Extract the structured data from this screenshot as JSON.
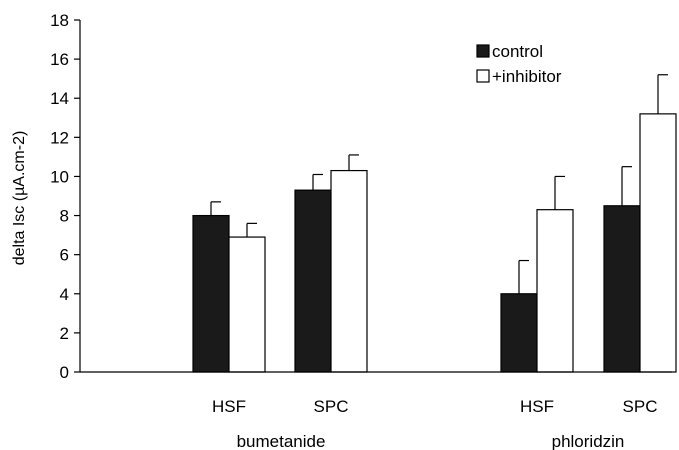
{
  "chart_data": {
    "type": "bar",
    "ylabel": "delta Isc (µA.cm-2)",
    "xlabel": "",
    "ylim": [
      0,
      18
    ],
    "yticks": [
      0,
      2,
      4,
      6,
      8,
      10,
      12,
      14,
      16,
      18
    ],
    "ytick_labels": [
      "0",
      "2",
      "4",
      "6",
      "8",
      "10",
      "12",
      "14",
      "16",
      "18"
    ],
    "grid": false,
    "legend_position": "top-right",
    "groups": [
      {
        "label": "bumetanide",
        "categories": [
          "HSF",
          "SPC"
        ]
      },
      {
        "label": "phloridzin",
        "categories": [
          "HSF",
          "SPC"
        ]
      }
    ],
    "categories": [
      "HSF",
      "SPC",
      "HSF",
      "SPC"
    ],
    "series": [
      {
        "name": "control",
        "color": "#1a1a1a",
        "values": [
          8.0,
          9.3,
          4.0,
          8.5
        ],
        "error": [
          0.7,
          0.8,
          1.7,
          2.0
        ]
      },
      {
        "name": "+inhibitor",
        "color": "#ffffff",
        "values": [
          6.9,
          10.3,
          8.3,
          13.2
        ],
        "error": [
          0.7,
          0.8,
          1.7,
          2.0
        ]
      }
    ]
  }
}
